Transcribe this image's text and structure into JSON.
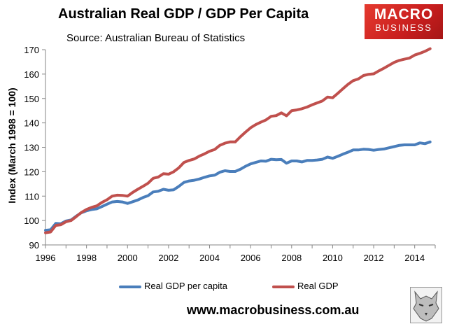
{
  "header": {
    "title": "Australian Real GDP / GDP Per Capita",
    "subtitle": "Source: Australian Bureau of Statistics"
  },
  "logo": {
    "line1": "MACRO",
    "line2": "BUSINESS",
    "color": "#d42a24"
  },
  "footer": {
    "url": "www.macrobusiness.com.au"
  },
  "chart_data": {
    "type": "line",
    "title": "Australian Real GDP / GDP Per Capita",
    "subtitle": "Source: Australian Bureau of Statistics",
    "xlabel": "",
    "ylabel": "Index (March 1998 = 100)",
    "xlim": [
      1996,
      2015
    ],
    "ylim": [
      90,
      170
    ],
    "xticks": [
      1996,
      1998,
      2000,
      2002,
      2004,
      2006,
      2008,
      2010,
      2012,
      2014
    ],
    "yticks": [
      90,
      100,
      110,
      120,
      130,
      140,
      150,
      160,
      170
    ],
    "grid": false,
    "legend": "bottom",
    "series": [
      {
        "name": "Real GDP per capita",
        "color": "#4a7ebb",
        "x": [
          1996.0,
          1996.25,
          1996.5,
          1996.75,
          1997.0,
          1997.25,
          1997.5,
          1997.75,
          1998.0,
          1998.25,
          1998.5,
          1998.75,
          1999.0,
          1999.25,
          1999.5,
          1999.75,
          2000.0,
          2000.25,
          2000.5,
          2000.75,
          2001.0,
          2001.25,
          2001.5,
          2001.75,
          2002.0,
          2002.25,
          2002.5,
          2002.75,
          2003.0,
          2003.25,
          2003.5,
          2003.75,
          2004.0,
          2004.25,
          2004.5,
          2004.75,
          2005.0,
          2005.25,
          2005.5,
          2005.75,
          2006.0,
          2006.25,
          2006.5,
          2006.75,
          2007.0,
          2007.25,
          2007.5,
          2007.75,
          2008.0,
          2008.25,
          2008.5,
          2008.75,
          2009.0,
          2009.25,
          2009.5,
          2009.75,
          2010.0,
          2010.25,
          2010.5,
          2010.75,
          2011.0,
          2011.25,
          2011.5,
          2011.75,
          2012.0,
          2012.25,
          2012.5,
          2012.75,
          2013.0,
          2013.25,
          2013.5,
          2013.75,
          2014.0,
          2014.25,
          2014.5,
          2014.75
        ],
        "values": [
          96.0,
          96.2,
          98.8,
          98.7,
          99.8,
          100.2,
          101.8,
          103.2,
          104.0,
          104.5,
          104.8,
          105.7,
          106.7,
          107.6,
          107.8,
          107.6,
          107.0,
          107.7,
          108.4,
          109.4,
          110.2,
          111.7,
          112.0,
          112.8,
          112.4,
          112.6,
          114.0,
          115.6,
          116.2,
          116.5,
          117.0,
          117.7,
          118.3,
          118.6,
          119.8,
          120.4,
          120.1,
          120.1,
          121.0,
          122.2,
          123.2,
          123.8,
          124.4,
          124.3,
          125.1,
          124.9,
          125.0,
          123.5,
          124.4,
          124.4,
          124.0,
          124.6,
          124.6,
          124.8,
          125.1,
          126.0,
          125.5,
          126.3,
          127.2,
          128.0,
          128.9,
          128.9,
          129.2,
          129.1,
          128.8,
          129.1,
          129.3,
          129.8,
          130.3,
          130.8,
          131.0,
          131.0,
          131.0,
          131.8,
          131.5,
          132.2
        ]
      },
      {
        "name": "Real GDP",
        "color": "#c0504d",
        "x": [
          1996.0,
          1996.25,
          1996.5,
          1996.75,
          1997.0,
          1997.25,
          1997.5,
          1997.75,
          1998.0,
          1998.25,
          1998.5,
          1998.75,
          1999.0,
          1999.25,
          1999.5,
          1999.75,
          2000.0,
          2000.25,
          2000.5,
          2000.75,
          2001.0,
          2001.25,
          2001.5,
          2001.75,
          2002.0,
          2002.25,
          2002.5,
          2002.75,
          2003.0,
          2003.25,
          2003.5,
          2003.75,
          2004.0,
          2004.25,
          2004.5,
          2004.75,
          2005.0,
          2005.25,
          2005.5,
          2005.75,
          2006.0,
          2006.25,
          2006.5,
          2006.75,
          2007.0,
          2007.25,
          2007.5,
          2007.75,
          2008.0,
          2008.25,
          2008.5,
          2008.75,
          2009.0,
          2009.25,
          2009.5,
          2009.75,
          2010.0,
          2010.25,
          2010.5,
          2010.75,
          2011.0,
          2011.25,
          2011.5,
          2011.75,
          2012.0,
          2012.25,
          2012.5,
          2012.75,
          2013.0,
          2013.25,
          2013.5,
          2013.75,
          2014.0,
          2014.25,
          2014.5,
          2014.75
        ],
        "values": [
          95.0,
          95.3,
          98.0,
          98.3,
          99.5,
          100.0,
          101.6,
          103.3,
          104.5,
          105.4,
          106.0,
          107.4,
          108.5,
          110.0,
          110.4,
          110.3,
          110.0,
          111.5,
          112.8,
          114.0,
          115.3,
          117.3,
          117.8,
          119.2,
          119.0,
          120.0,
          121.6,
          123.8,
          124.6,
          125.2,
          126.4,
          127.3,
          128.4,
          129.1,
          130.8,
          131.7,
          132.2,
          132.2,
          134.3,
          136.2,
          138.0,
          139.3,
          140.3,
          141.2,
          142.7,
          143.0,
          144.1,
          142.9,
          145.0,
          145.3,
          145.8,
          146.5,
          147.4,
          148.2,
          149.0,
          150.6,
          150.3,
          152.1,
          154.0,
          155.8,
          157.3,
          158.0,
          159.4,
          159.9,
          160.1,
          161.3,
          162.4,
          163.6,
          164.8,
          165.6,
          166.1,
          166.6,
          167.8,
          168.5,
          169.3,
          170.4
        ]
      }
    ]
  }
}
